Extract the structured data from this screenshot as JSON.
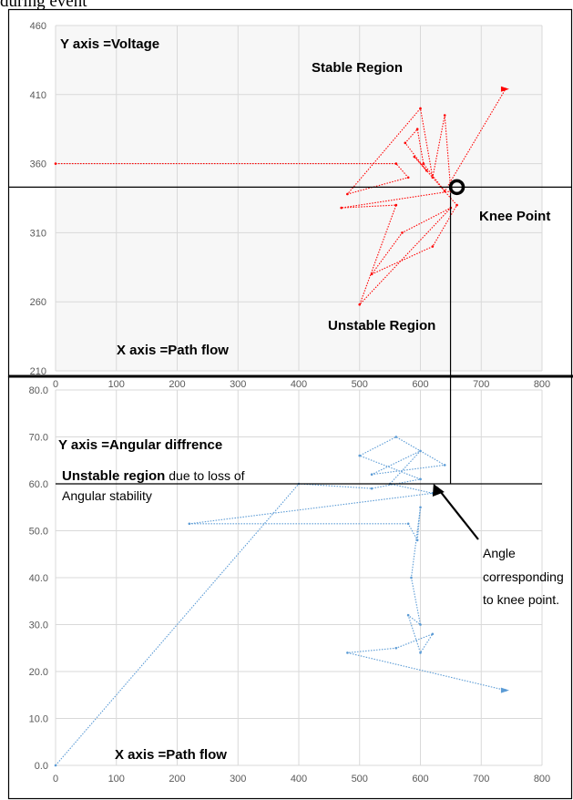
{
  "caption": "during event",
  "chart_data": [
    {
      "type": "scatter",
      "title": "",
      "xlabel": "",
      "ylabel": "",
      "xlim": [
        0,
        800
      ],
      "ylim": [
        210,
        460
      ],
      "xticks": [
        "0",
        "100",
        "200",
        "300",
        "400",
        "500",
        "600",
        "700",
        "800"
      ],
      "yticks": [
        "210",
        "260",
        "310",
        "360",
        "410",
        "460"
      ],
      "grid": true,
      "color": "#ff0000",
      "annotations": {
        "y_axis_note": "Y axis =Voltage",
        "x_axis_note": "X axis =Path flow",
        "stable": "Stable Region",
        "unstable": "Unstable Region",
        "knee": "Knee Point"
      },
      "knee_point": {
        "x": 660,
        "y": 343
      },
      "series": [
        {
          "values": [
            {
              "x": 0,
              "y": 360
            },
            {
              "x": 560,
              "y": 360
            },
            {
              "x": 580,
              "y": 350
            },
            {
              "x": 480,
              "y": 338
            },
            {
              "x": 600,
              "y": 400
            },
            {
              "x": 620,
              "y": 350
            },
            {
              "x": 640,
              "y": 395
            },
            {
              "x": 650,
              "y": 340
            },
            {
              "x": 470,
              "y": 328
            },
            {
              "x": 560,
              "y": 330
            },
            {
              "x": 500,
              "y": 258
            },
            {
              "x": 650,
              "y": 328
            },
            {
              "x": 570,
              "y": 310
            },
            {
              "x": 520,
              "y": 280
            },
            {
              "x": 620,
              "y": 300
            },
            {
              "x": 660,
              "y": 330
            },
            {
              "x": 590,
              "y": 365
            },
            {
              "x": 610,
              "y": 355
            },
            {
              "x": 575,
              "y": 375
            },
            {
              "x": 595,
              "y": 385
            },
            {
              "x": 605,
              "y": 360
            },
            {
              "x": 640,
              "y": 340
            },
            {
              "x": 740,
              "y": 414
            }
          ]
        }
      ]
    },
    {
      "type": "scatter",
      "title": "",
      "xlabel": "",
      "ylabel": "",
      "xlim": [
        0,
        800
      ],
      "ylim": [
        0,
        80
      ],
      "xticks": [
        "0",
        "100",
        "200",
        "300",
        "400",
        "500",
        "600",
        "700",
        "800"
      ],
      "yticks": [
        "0.0",
        "10.0",
        "20.0",
        "30.0",
        "40.0",
        "50.0",
        "60.0",
        "70.0",
        "80.0"
      ],
      "grid": true,
      "color": "#5b9bd5",
      "annotations": {
        "y_axis_note": "Y axis =Angular diffrence",
        "unstable_bold": "Unstable region",
        "unstable_rest": " due to loss of",
        "unstable_line2": "Angular stability",
        "x_axis_note": "X axis =Path flow",
        "angle_note": [
          "Angle",
          "corresponding",
          "to knee point."
        ]
      },
      "knee_angle": {
        "x": 635,
        "y": 60
      },
      "series": [
        {
          "values": [
            {
              "x": 0,
              "y": 0
            },
            {
              "x": 400,
              "y": 60
            },
            {
              "x": 520,
              "y": 59
            },
            {
              "x": 600,
              "y": 61
            },
            {
              "x": 500,
              "y": 66
            },
            {
              "x": 560,
              "y": 70
            },
            {
              "x": 640,
              "y": 64
            },
            {
              "x": 520,
              "y": 62
            },
            {
              "x": 600,
              "y": 67
            },
            {
              "x": 550,
              "y": 60
            },
            {
              "x": 620,
              "y": 58
            },
            {
              "x": 220,
              "y": 51.5
            },
            {
              "x": 580,
              "y": 51.5
            },
            {
              "x": 595,
              "y": 48
            },
            {
              "x": 600,
              "y": 55
            },
            {
              "x": 585,
              "y": 40
            },
            {
              "x": 600,
              "y": 30
            },
            {
              "x": 580,
              "y": 32
            },
            {
              "x": 600,
              "y": 24
            },
            {
              "x": 620,
              "y": 28
            },
            {
              "x": 560,
              "y": 25
            },
            {
              "x": 480,
              "y": 24
            },
            {
              "x": 740,
              "y": 16
            }
          ]
        }
      ]
    }
  ]
}
